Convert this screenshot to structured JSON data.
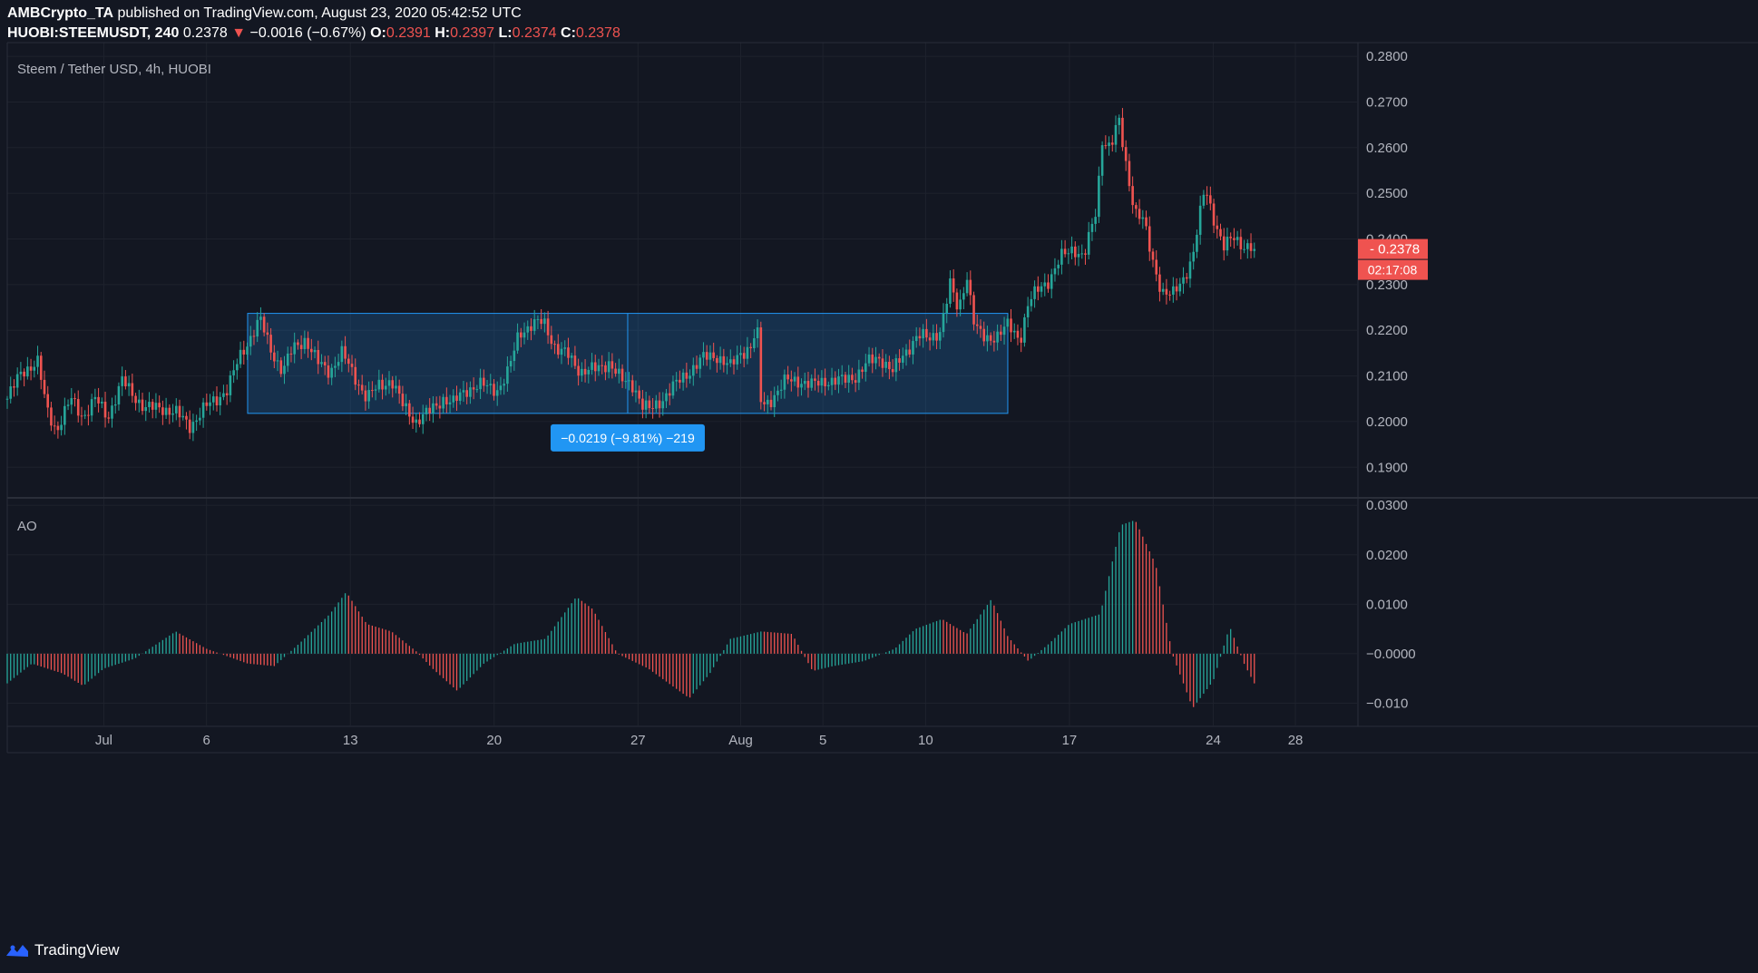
{
  "header": {
    "publisher": "AMBCrypto_TA",
    "published_text": "published on TradingView.com, August 23, 2020 05:42:52 UTC",
    "symbol": "HUOBI:STEEMUSDT, 240",
    "last": "0.2378",
    "change": "−0.0016 (−0.67%)",
    "o_label": "O:",
    "o": "0.2391",
    "h_label": "H:",
    "h": "0.2397",
    "l_label": "L:",
    "l": "0.2374",
    "c_label": "C:",
    "c": "0.2378"
  },
  "chart_data": [
    {
      "type": "candlestick",
      "title": "Steem / Tether USD, 4h, HUOBI",
      "y_ticks": [
        "0.2800",
        "0.2700",
        "0.2600",
        "0.2500",
        "0.2400",
        "0.2300",
        "0.2200",
        "0.2100",
        "0.2000",
        "0.1900"
      ],
      "ylim": [
        0.1835,
        0.283
      ],
      "x_ticks": [
        {
          "label": "Jul",
          "day": 1
        },
        {
          "label": "6",
          "day": 6
        },
        {
          "label": "13",
          "day": 13
        },
        {
          "label": "20",
          "day": 20
        },
        {
          "label": "27",
          "day": 27
        },
        {
          "label": "Aug",
          "day": 32
        },
        {
          "label": "5",
          "day": 36
        },
        {
          "label": "10",
          "day": 41
        },
        {
          "label": "17",
          "day": 48
        },
        {
          "label": "24",
          "day": 55
        },
        {
          "label": "28",
          "day": 59
        }
      ],
      "xlim": [
        -3.7,
        62
      ],
      "price_path": [
        [
          -3.7,
          0.205
        ],
        [
          -3.0,
          0.211
        ],
        [
          -2.2,
          0.213
        ],
        [
          -1.8,
          0.203
        ],
        [
          -1.3,
          0.198
        ],
        [
          -0.6,
          0.205
        ],
        [
          0.0,
          0.201
        ],
        [
          0.6,
          0.205
        ],
        [
          1.2,
          0.201
        ],
        [
          1.9,
          0.209
        ],
        [
          2.4,
          0.206
        ],
        [
          3.0,
          0.203
        ],
        [
          3.8,
          0.203
        ],
        [
          4.5,
          0.202
        ],
        [
          5.2,
          0.199
        ],
        [
          5.9,
          0.203
        ],
        [
          6.5,
          0.205
        ],
        [
          7.0,
          0.207
        ],
        [
          7.6,
          0.214
        ],
        [
          8.2,
          0.219
        ],
        [
          8.6,
          0.2225
        ],
        [
          9.1,
          0.216
        ],
        [
          9.7,
          0.211
        ],
        [
          10.2,
          0.216
        ],
        [
          10.8,
          0.218
        ],
        [
          11.4,
          0.213
        ],
        [
          12.0,
          0.211
        ],
        [
          12.6,
          0.215
        ],
        [
          13.2,
          0.21
        ],
        [
          13.8,
          0.205
        ],
        [
          14.4,
          0.208
        ],
        [
          15.0,
          0.209
        ],
        [
          15.5,
          0.204
        ],
        [
          16.2,
          0.2
        ],
        [
          16.8,
          0.202
        ],
        [
          17.5,
          0.205
        ],
        [
          18.0,
          0.204
        ],
        [
          18.6,
          0.207
        ],
        [
          19.4,
          0.208
        ],
        [
          20.2,
          0.207
        ],
        [
          20.7,
          0.211
        ],
        [
          21.2,
          0.2195
        ],
        [
          21.8,
          0.221
        ],
        [
          22.4,
          0.222
        ],
        [
          23.0,
          0.216
        ],
        [
          23.6,
          0.2145
        ],
        [
          24.2,
          0.211
        ],
        [
          25.0,
          0.2115
        ],
        [
          25.6,
          0.213
        ],
        [
          26.2,
          0.209
        ],
        [
          26.8,
          0.208
        ],
        [
          27.2,
          0.2035
        ],
        [
          27.6,
          0.2025
        ],
        [
          28.2,
          0.205
        ],
        [
          28.8,
          0.208
        ],
        [
          29.5,
          0.211
        ],
        [
          30.2,
          0.214
        ],
        [
          30.8,
          0.2145
        ],
        [
          31.5,
          0.212
        ],
        [
          32.0,
          0.215
        ],
        [
          32.5,
          0.2165
        ],
        [
          32.8,
          0.2205
        ],
        [
          33.0,
          0.203
        ],
        [
          33.5,
          0.205
        ],
        [
          34.2,
          0.209
        ],
        [
          34.8,
          0.209
        ],
        [
          35.5,
          0.208
        ],
        [
          36.2,
          0.209
        ],
        [
          37.0,
          0.209
        ],
        [
          37.6,
          0.21
        ],
        [
          38.2,
          0.213
        ],
        [
          38.8,
          0.214
        ],
        [
          39.4,
          0.211
        ],
        [
          40.0,
          0.215
        ],
        [
          40.6,
          0.219
        ],
        [
          41.2,
          0.218
        ],
        [
          41.7,
          0.22
        ],
        [
          42.2,
          0.23
        ],
        [
          42.6,
          0.224
        ],
        [
          43.0,
          0.2325
        ],
        [
          43.4,
          0.2205
        ],
        [
          43.9,
          0.218
        ],
        [
          44.5,
          0.219
        ],
        [
          45.0,
          0.221
        ],
        [
          45.6,
          0.218
        ],
        [
          46.0,
          0.226
        ],
        [
          46.5,
          0.229
        ],
        [
          47.0,
          0.231
        ],
        [
          47.6,
          0.236
        ],
        [
          48.2,
          0.238
        ],
        [
          48.7,
          0.236
        ],
        [
          49.0,
          0.241
        ],
        [
          49.3,
          0.246
        ],
        [
          49.6,
          0.262
        ],
        [
          50.0,
          0.26
        ],
        [
          50.4,
          0.266
        ],
        [
          50.8,
          0.255
        ],
        [
          51.2,
          0.246
        ],
        [
          51.6,
          0.244
        ],
        [
          52.0,
          0.236
        ],
        [
          52.5,
          0.2285
        ],
        [
          53.0,
          0.2275
        ],
        [
          53.5,
          0.231
        ],
        [
          54.0,
          0.236
        ],
        [
          54.6,
          0.2515
        ],
        [
          55.0,
          0.245
        ],
        [
          55.5,
          0.238
        ],
        [
          56.0,
          0.2405
        ],
        [
          56.5,
          0.2385
        ],
        [
          57.0,
          0.2378
        ]
      ],
      "range_box": {
        "x0": 8.0,
        "x1": 45.0,
        "y_top": 0.2237,
        "y_bottom": 0.2018
      },
      "measure_label": "−0.0219 (−9.81%) −219",
      "last_price_label": "0.2378",
      "countdown_label": "02:17:08"
    },
    {
      "type": "bar",
      "title": "AO",
      "y_ticks": [
        "0.0300",
        "0.0200",
        "0.0100",
        "−0.0000",
        "−0.010"
      ],
      "ylim": [
        -0.0145,
        0.0315
      ],
      "series": [
        {
          "name": "AO",
          "x_range": [
            -3.7,
            57.0
          ],
          "path": [
            [
              -3.7,
              -0.006
            ],
            [
              -2.5,
              -0.002
            ],
            [
              -1.0,
              -0.004
            ],
            [
              0.0,
              -0.0065
            ],
            [
              1.0,
              -0.003
            ],
            [
              2.5,
              -0.001
            ],
            [
              4.5,
              0.0045
            ],
            [
              6.0,
              0.001
            ],
            [
              8.0,
              -0.002
            ],
            [
              9.3,
              -0.0025
            ],
            [
              10.5,
              0.002
            ],
            [
              12.0,
              0.008
            ],
            [
              12.8,
              0.0125
            ],
            [
              13.8,
              0.006
            ],
            [
              15.0,
              0.0045
            ],
            [
              16.2,
              0.0005
            ],
            [
              17.0,
              -0.003
            ],
            [
              18.2,
              -0.0075
            ],
            [
              19.5,
              -0.002
            ],
            [
              21.0,
              0.002
            ],
            [
              22.5,
              0.003
            ],
            [
              24.0,
              0.0115
            ],
            [
              24.8,
              0.009
            ],
            [
              26.0,
              0.0
            ],
            [
              27.5,
              -0.003
            ],
            [
              29.5,
              -0.009
            ],
            [
              30.5,
              -0.004
            ],
            [
              31.5,
              0.003
            ],
            [
              33.0,
              0.0045
            ],
            [
              34.5,
              0.004
            ],
            [
              35.5,
              -0.0035
            ],
            [
              36.5,
              -0.0025
            ],
            [
              38.0,
              -0.0015
            ],
            [
              39.5,
              0.001
            ],
            [
              40.5,
              0.005
            ],
            [
              41.8,
              0.007
            ],
            [
              43.0,
              0.004
            ],
            [
              44.2,
              0.011
            ],
            [
              45.0,
              0.0035
            ],
            [
              46.0,
              -0.0015
            ],
            [
              47.0,
              0.002
            ],
            [
              48.0,
              0.006
            ],
            [
              49.5,
              0.008
            ],
            [
              50.5,
              0.026
            ],
            [
              51.2,
              0.027
            ],
            [
              52.2,
              0.018
            ],
            [
              53.0,
              0.0
            ],
            [
              54.0,
              -0.011
            ],
            [
              55.0,
              -0.0055
            ],
            [
              55.8,
              0.0055
            ],
            [
              56.5,
              -0.002
            ],
            [
              57.0,
              -0.006
            ]
          ]
        }
      ]
    }
  ],
  "footer": {
    "brand": "TradingView"
  },
  "colors": {
    "up": "#26a69a",
    "down": "#ef5350",
    "ao_up": "#26a69a",
    "ao_down": "#ef5350",
    "range": "#2196f3",
    "background": "#131722",
    "grid": "#1e222d",
    "axis_text": "#b2b5be"
  }
}
